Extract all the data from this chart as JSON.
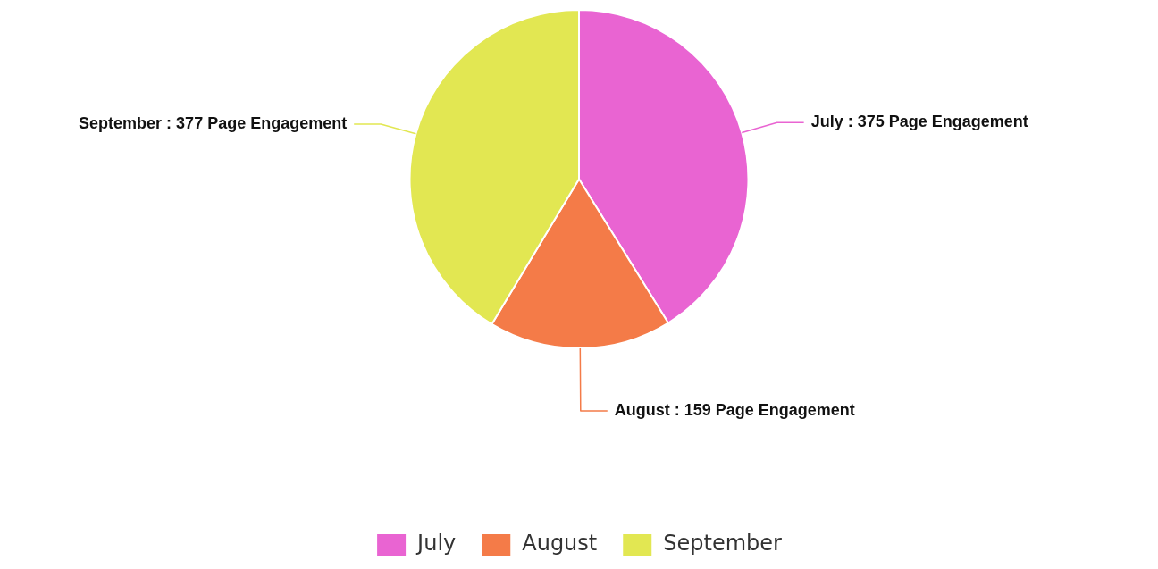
{
  "chart_data": {
    "type": "pie",
    "categories": [
      "July",
      "August",
      "September"
    ],
    "values": [
      375,
      159,
      377
    ],
    "colors": [
      "#e964d2",
      "#f47b48",
      "#e2e752"
    ],
    "value_labels": [
      "July : 375 Page Engagement",
      "August : 159 Page Engagement",
      "September : 377 Page Engagement"
    ],
    "legend": "bottom"
  }
}
